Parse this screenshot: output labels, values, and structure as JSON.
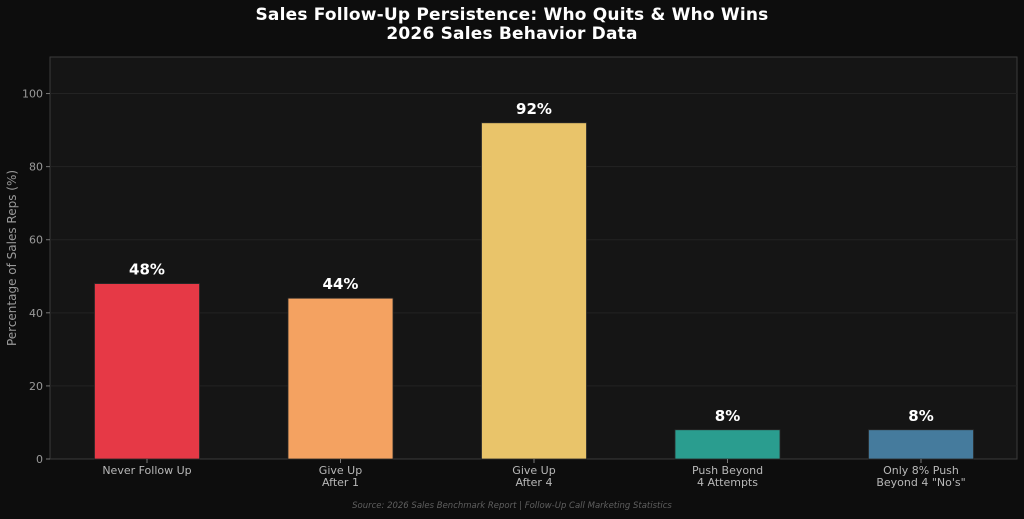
{
  "chart_data": {
    "type": "bar",
    "title_lines": [
      "Sales Follow-Up Persistence: Who Quits & Who Wins",
      "2026 Sales Behavior Data"
    ],
    "ylabel": "Percentage of Sales Reps (%)",
    "xlabel": "",
    "ylim": [
      0,
      110
    ],
    "yticks": [
      0,
      20,
      40,
      60,
      80,
      100
    ],
    "grid": true,
    "categories": [
      [
        "Never Follow Up"
      ],
      [
        "Give Up",
        "After 1"
      ],
      [
        "Give Up",
        "After 4"
      ],
      [
        "Push Beyond",
        "4 Attempts"
      ],
      [
        "Only 8% Push",
        "Beyond 4 \"No's\""
      ]
    ],
    "values": [
      48,
      44,
      92,
      8,
      8
    ],
    "data_labels": [
      "48%",
      "44%",
      "92%",
      "8%",
      "8%"
    ],
    "colors": [
      "#e63946",
      "#f4a261",
      "#e9c46a",
      "#2a9d8f",
      "#457b9d"
    ],
    "source": "Source: 2026 Sales Benchmark Report | Follow-Up Call Marketing Statistics"
  },
  "theme": {
    "background": "#0d0d0d",
    "plot_background": "#151515",
    "grid_color": "#232323",
    "axis_color": "#3a3a3a",
    "tick_label_color": "#b8b8b8",
    "data_label_color": "#ffffff"
  }
}
